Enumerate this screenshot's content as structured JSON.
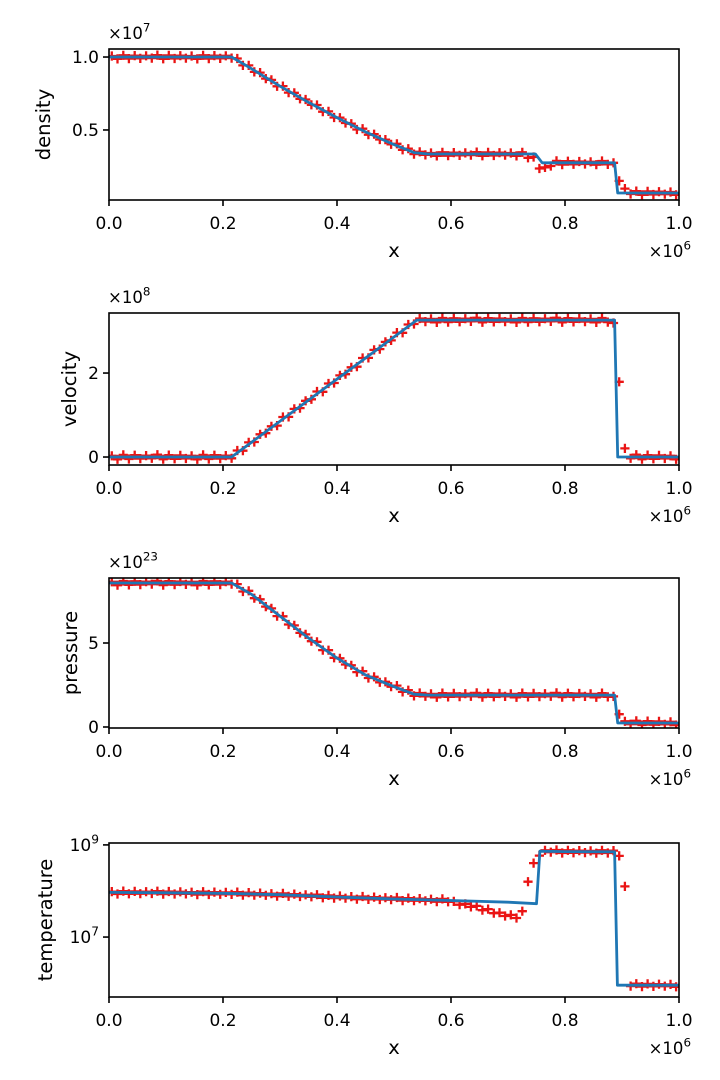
{
  "figure": {
    "kind": "matplotlib-style 4-panel shock-tube profile figure",
    "background": "#ffffff"
  },
  "colors": {
    "line": "#1f77b4",
    "markers": "#ea1414",
    "axes": "#000000"
  },
  "chart_data": [
    {
      "name": "density",
      "type": "line",
      "ylabel": "density",
      "xlabel": "x",
      "xscale": "linear",
      "yscale": "linear",
      "y_offset_text": "×10^7",
      "x_offset_text": "×10^6",
      "xlim": [
        0.0,
        1.0
      ],
      "ylim": [
        0.02,
        1.055
      ],
      "grid": false,
      "legend": null,
      "xticks": {
        "values": [
          0.0,
          0.2,
          0.4,
          0.6,
          0.8,
          1.0
        ],
        "labels": [
          "0.0",
          "0.2",
          "0.4",
          "0.6",
          "0.8",
          "1.0"
        ]
      },
      "yticks": {
        "values": [
          0.5,
          1.0
        ],
        "labels": [
          "0.5",
          "1.0"
        ]
      },
      "series": [
        {
          "name": "solution-line",
          "style": "line",
          "points": [
            [
              0,
              1.0
            ],
            [
              0.215,
              1.0
            ],
            [
              0.25,
              0.92
            ],
            [
              0.3,
              0.8
            ],
            [
              0.35,
              0.69
            ],
            [
              0.4,
              0.585
            ],
            [
              0.45,
              0.487
            ],
            [
              0.5,
              0.4
            ],
            [
              0.535,
              0.345
            ],
            [
              0.56,
              0.335
            ],
            [
              0.748,
              0.335
            ],
            [
              0.76,
              0.275
            ],
            [
              0.887,
              0.275
            ],
            [
              0.8925,
              0.068
            ],
            [
              1.0,
              0.068
            ]
          ]
        },
        {
          "name": "numerical-markers",
          "style": "plus",
          "sample": {
            "start": 0.005,
            "spacing": 0.01,
            "count": 100,
            "jitter": 0.013
          },
          "overrides": [
            [
              0.735,
              0.32
            ],
            [
              0.745,
              0.305
            ],
            [
              0.755,
              0.245
            ],
            [
              0.765,
              0.235
            ],
            [
              0.775,
              0.26
            ],
            [
              0.885,
              0.265
            ],
            [
              0.895,
              0.16
            ],
            [
              0.905,
              0.09
            ]
          ]
        }
      ]
    },
    {
      "name": "velocity",
      "type": "line",
      "ylabel": "velocity",
      "xlabel": "x",
      "xscale": "linear",
      "yscale": "linear",
      "y_offset_text": "×10^8",
      "x_offset_text": "×10^6",
      "xlim": [
        0.0,
        1.0
      ],
      "ylim": [
        -0.19,
        3.43
      ],
      "grid": false,
      "legend": null,
      "xticks": {
        "values": [
          0.0,
          0.2,
          0.4,
          0.6,
          0.8,
          1.0
        ],
        "labels": [
          "0.0",
          "0.2",
          "0.4",
          "0.6",
          "0.8",
          "1.0"
        ]
      },
      "yticks": {
        "values": [
          0,
          2
        ],
        "labels": [
          "0",
          "2"
        ]
      },
      "series": [
        {
          "name": "solution-line",
          "style": "line",
          "points": [
            [
              0,
              0.0
            ],
            [
              0.215,
              0.0
            ],
            [
              0.54,
              3.26
            ],
            [
              0.887,
              3.26
            ],
            [
              0.8925,
              0.0
            ],
            [
              1.0,
              0.0
            ]
          ]
        },
        {
          "name": "numerical-markers",
          "style": "plus",
          "sample": {
            "start": 0.005,
            "spacing": 0.01,
            "count": 100,
            "jitter": 0.055
          },
          "overrides": [
            [
              0.885,
              3.15
            ],
            [
              0.895,
              1.83
            ],
            [
              0.905,
              0.17
            ]
          ]
        }
      ]
    },
    {
      "name": "pressure",
      "type": "line",
      "ylabel": "pressure",
      "xlabel": "x",
      "xscale": "linear",
      "yscale": "linear",
      "y_offset_text": "×10^23",
      "x_offset_text": "×10^6",
      "xlim": [
        0.0,
        1.0
      ],
      "ylim": [
        -0.06,
        8.87
      ],
      "grid": false,
      "legend": null,
      "xticks": {
        "values": [
          0.0,
          0.2,
          0.4,
          0.6,
          0.8,
          1.0
        ],
        "labels": [
          "0.0",
          "0.2",
          "0.4",
          "0.6",
          "0.8",
          "1.0"
        ]
      },
      "yticks": {
        "values": [
          0,
          5
        ],
        "labels": [
          "0",
          "5"
        ]
      },
      "series": [
        {
          "name": "solution-line",
          "style": "line",
          "points": [
            [
              0,
              8.57
            ],
            [
              0.215,
              8.57
            ],
            [
              0.25,
              7.9
            ],
            [
              0.3,
              6.6
            ],
            [
              0.35,
              5.3
            ],
            [
              0.4,
              4.1
            ],
            [
              0.45,
              3.1
            ],
            [
              0.5,
              2.4
            ],
            [
              0.535,
              1.95
            ],
            [
              0.56,
              1.9
            ],
            [
              0.887,
              1.9
            ],
            [
              0.8925,
              0.24
            ],
            [
              1.0,
              0.24
            ]
          ]
        },
        {
          "name": "numerical-markers",
          "style": "plus",
          "sample": {
            "start": 0.005,
            "spacing": 0.01,
            "count": 100,
            "jitter": 0.13
          },
          "overrides": [
            [
              0.885,
              1.72
            ],
            [
              0.895,
              0.85
            ],
            [
              0.905,
              0.26
            ]
          ]
        }
      ]
    },
    {
      "name": "temperature",
      "type": "line",
      "ylabel": "temperature",
      "xlabel": "x",
      "xscale": "linear",
      "yscale": "log",
      "y_offset_text": null,
      "x_offset_text": "×10^6",
      "xlim": [
        0.0,
        1.0
      ],
      "ylim": [
        500000.0,
        1100000000.0
      ],
      "grid": false,
      "legend": null,
      "xticks": {
        "values": [
          0.0,
          0.2,
          0.4,
          0.6,
          0.8,
          1.0
        ],
        "labels": [
          "0.0",
          "0.2",
          "0.4",
          "0.6",
          "0.8",
          "1.0"
        ]
      },
      "yticks": {
        "values": [
          10000000.0,
          1000000000.0
        ],
        "labels": [
          "10^7",
          "10^9"
        ]
      },
      "series": [
        {
          "name": "solution-line",
          "style": "line",
          "points": [
            [
              0,
              93000000.0
            ],
            [
              0.1,
              91500000.0
            ],
            [
              0.2,
              89000000.0
            ],
            [
              0.3,
              83000000.0
            ],
            [
              0.4,
              74000000.0
            ],
            [
              0.5,
              67000000.0
            ],
            [
              0.6,
              62000000.0
            ],
            [
              0.7,
              57000000.0
            ],
            [
              0.75,
              53000000.0
            ],
            [
              0.756,
              730000000.0
            ],
            [
              0.8,
              715000000.0
            ],
            [
              0.887,
              710000000.0
            ],
            [
              0.892,
              900000.0
            ],
            [
              1.0,
              900000.0
            ]
          ]
        },
        {
          "name": "numerical-markers",
          "style": "plus",
          "sample": {
            "start": 0.005,
            "spacing": 0.01,
            "count": 100,
            "jitter": 0.033
          },
          "overrides": [
            [
              0.605,
              56000000.0
            ],
            [
              0.615,
              53000000.0
            ],
            [
              0.625,
              50000000.0
            ],
            [
              0.635,
              47000000.0
            ],
            [
              0.645,
              44000000.0
            ],
            [
              0.655,
              41000000.0
            ],
            [
              0.665,
              38000000.0
            ],
            [
              0.675,
              35000000.0
            ],
            [
              0.685,
              32000000.0
            ],
            [
              0.695,
              30000000.0
            ],
            [
              0.705,
              29000000.0
            ],
            [
              0.715,
              28000000.0
            ],
            [
              0.725,
              34000000.0
            ],
            [
              0.735,
              170000000.0
            ],
            [
              0.745,
              380000000.0
            ],
            [
              0.895,
              610000000.0
            ],
            [
              0.905,
              120000000.0
            ]
          ]
        }
      ]
    }
  ]
}
